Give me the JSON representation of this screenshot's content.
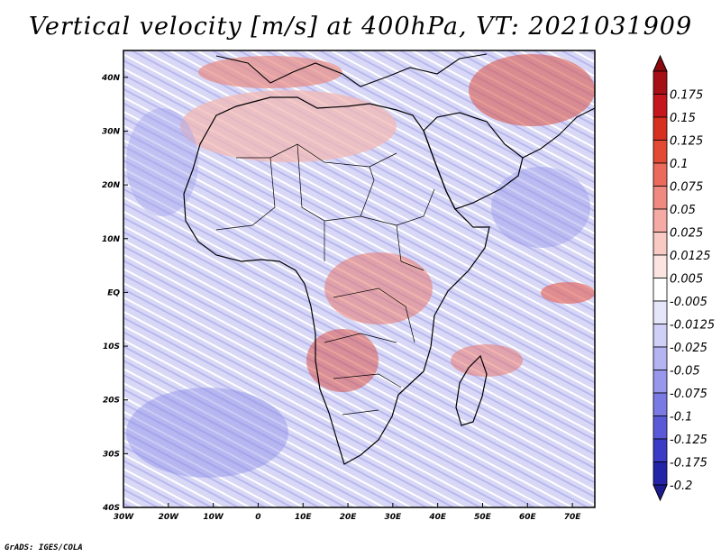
{
  "title": "Vertical velocity [m/s] at 400hPa, VT: 2021031909",
  "credit": "GrADS: IGES/COLA",
  "map": {
    "lon_range": [
      -30,
      75
    ],
    "lat_range": [
      -40,
      45
    ],
    "x_ticks": [
      {
        "value": -30,
        "label": "30W"
      },
      {
        "value": -20,
        "label": "20W"
      },
      {
        "value": -10,
        "label": "10W"
      },
      {
        "value": 0,
        "label": "0"
      },
      {
        "value": 10,
        "label": "10E"
      },
      {
        "value": 20,
        "label": "20E"
      },
      {
        "value": 30,
        "label": "30E"
      },
      {
        "value": 40,
        "label": "40E"
      },
      {
        "value": 50,
        "label": "50E"
      },
      {
        "value": 60,
        "label": "60E"
      },
      {
        "value": 70,
        "label": "70E"
      }
    ],
    "y_ticks": [
      {
        "value": 40,
        "label": "40N"
      },
      {
        "value": 30,
        "label": "30N"
      },
      {
        "value": 20,
        "label": "20N"
      },
      {
        "value": 10,
        "label": "10N"
      },
      {
        "value": 0,
        "label": "EQ"
      },
      {
        "value": -10,
        "label": "10S"
      },
      {
        "value": -20,
        "label": "20S"
      },
      {
        "value": -30,
        "label": "30S"
      },
      {
        "value": -40,
        "label": "40S"
      }
    ]
  },
  "colorbar": {
    "levels": [
      {
        "label": "0.175",
        "color": "#a50f15"
      },
      {
        "label": "0.15",
        "color": "#c4161c"
      },
      {
        "label": "0.125",
        "color": "#d7301f"
      },
      {
        "label": "0.1",
        "color": "#e34a33"
      },
      {
        "label": "0.075",
        "color": "#ec6a5c"
      },
      {
        "label": "0.05",
        "color": "#f08a80"
      },
      {
        "label": "0.025",
        "color": "#f5aaa3"
      },
      {
        "label": "0.0125",
        "color": "#f9c9c4"
      },
      {
        "label": "0.005",
        "color": "#fce4e1"
      },
      {
        "label": "-0.005",
        "color": "#ffffff"
      },
      {
        "label": "-0.0125",
        "color": "#e6e6fb"
      },
      {
        "label": "-0.025",
        "color": "#cfcff7"
      },
      {
        "label": "-0.05",
        "color": "#b4b4f2"
      },
      {
        "label": "-0.075",
        "color": "#9797ec"
      },
      {
        "label": "-0.1",
        "color": "#7a7ae4"
      },
      {
        "label": "-0.125",
        "color": "#5a5ad9"
      },
      {
        "label": "-0.175",
        "color": "#3b3bc8"
      },
      {
        "label": "-0.2",
        "color": "#2424a8"
      }
    ],
    "top_arrow_color": "#8b0a10",
    "bottom_arrow_color": "#1c1c90"
  }
}
